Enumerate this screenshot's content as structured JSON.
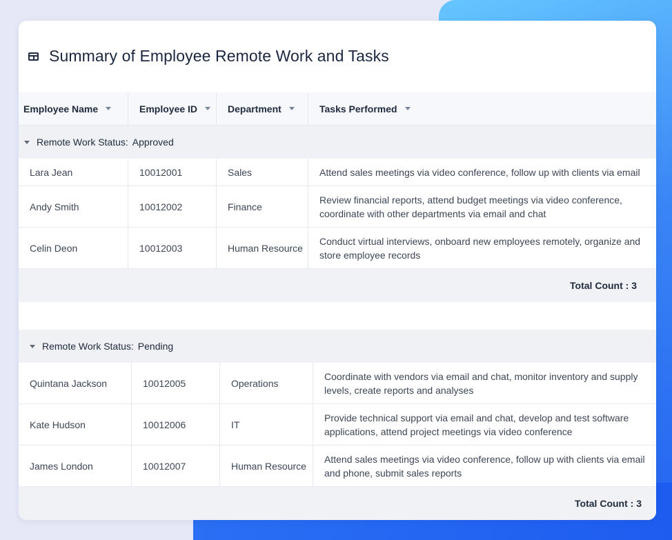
{
  "page": {
    "title": "Summary of Employee Remote Work and Tasks",
    "title_icon": "table-icon"
  },
  "columns": [
    {
      "label": "Employee Name"
    },
    {
      "label": "Employee ID"
    },
    {
      "label": "Department"
    },
    {
      "label": "Tasks Performed"
    }
  ],
  "groups": [
    {
      "label": "Remote Work Status:",
      "value": "Approved",
      "footer": "Total Count : 3",
      "rows": [
        {
          "name": "Lara Jean",
          "id": "10012001",
          "dept": "Sales",
          "tasks": "Attend sales meetings via video conference, follow up with clients via email"
        },
        {
          "name": "Andy Smith",
          "id": "10012002",
          "dept": "Finance",
          "tasks": "Review financial reports, attend budget meetings via video conference, coordinate with other departments via email and chat"
        },
        {
          "name": "Celin Deon",
          "id": "10012003",
          "dept": "Human Resource",
          "tasks": "Conduct virtual interviews, onboard new employees remotely, organize and store employee records"
        }
      ]
    },
    {
      "label": "Remote Work Status:",
      "value": "Pending",
      "footer": "Total Count : 3",
      "rows": [
        {
          "name": "Quintana Jackson",
          "id": "10012005",
          "dept": "Operations",
          "tasks": "Coordinate with vendors via email and chat, monitor inventory and supply levels, create reports and analyses"
        },
        {
          "name": "Kate Hudson",
          "id": "10012006",
          "dept": "IT",
          "tasks": "Provide technical support via email and chat, develop and test software applications, attend project meetings via video conference"
        },
        {
          "name": "James London",
          "id": "10012007",
          "dept": "Human Resource",
          "tasks": "Attend sales meetings via video conference, follow up with clients via email and phone, submit sales reports"
        }
      ]
    }
  ],
  "colors": {
    "accent": "#2a73f4",
    "background": "#e6e8f8",
    "header_bg": "#f7f8fb",
    "group_bg": "#eff1f5"
  }
}
